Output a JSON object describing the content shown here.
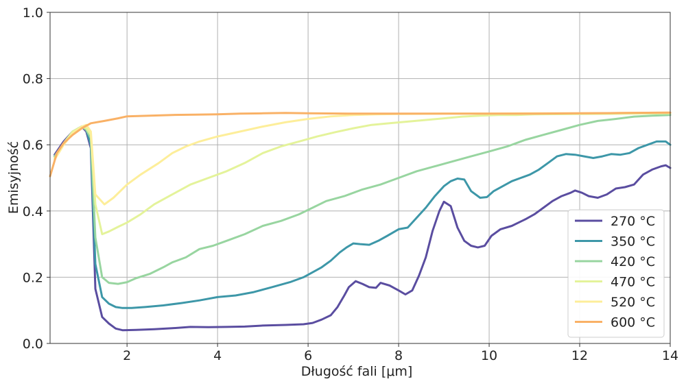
{
  "chart_data": {
    "type": "line",
    "title": "",
    "xlabel": "Długość fali [μm]",
    "ylabel": "Emisyjność",
    "xlim": [
      0.3,
      14
    ],
    "ylim": [
      0,
      1.0
    ],
    "grid": true,
    "legend_position": "lower-right",
    "x_ticks": [
      2,
      4,
      6,
      8,
      10,
      12,
      14
    ],
    "x_tick_labels": [
      "2",
      "4",
      "6",
      "8",
      "10",
      "12",
      "14"
    ],
    "y_ticks": [
      0.0,
      0.2,
      0.4,
      0.6,
      0.8,
      1.0
    ],
    "y_tick_labels": [
      "0.0",
      "0.2",
      "0.4",
      "0.6",
      "0.8",
      "1.0"
    ],
    "series": [
      {
        "name": "270 °C",
        "color": "#5a4da0",
        "points": [
          [
            0.4,
            0.57
          ],
          [
            0.6,
            0.61
          ],
          [
            0.8,
            0.64
          ],
          [
            1.0,
            0.655
          ],
          [
            1.1,
            0.64
          ],
          [
            1.2,
            0.59
          ],
          [
            1.3,
            0.165
          ],
          [
            1.45,
            0.08
          ],
          [
            1.6,
            0.06
          ],
          [
            1.75,
            0.045
          ],
          [
            1.9,
            0.04
          ],
          [
            2.2,
            0.041
          ],
          [
            2.6,
            0.043
          ],
          [
            3.0,
            0.046
          ],
          [
            3.4,
            0.05
          ],
          [
            3.8,
            0.049
          ],
          [
            4.2,
            0.05
          ],
          [
            4.6,
            0.051
          ],
          [
            5.0,
            0.054
          ],
          [
            5.5,
            0.056
          ],
          [
            5.9,
            0.058
          ],
          [
            6.1,
            0.062
          ],
          [
            6.3,
            0.072
          ],
          [
            6.5,
            0.085
          ],
          [
            6.65,
            0.11
          ],
          [
            6.8,
            0.145
          ],
          [
            6.9,
            0.17
          ],
          [
            7.05,
            0.188
          ],
          [
            7.2,
            0.18
          ],
          [
            7.35,
            0.17
          ],
          [
            7.5,
            0.168
          ],
          [
            7.6,
            0.183
          ],
          [
            7.8,
            0.175
          ],
          [
            8.0,
            0.16
          ],
          [
            8.15,
            0.148
          ],
          [
            8.3,
            0.16
          ],
          [
            8.45,
            0.205
          ],
          [
            8.6,
            0.26
          ],
          [
            8.75,
            0.34
          ],
          [
            8.9,
            0.4
          ],
          [
            9.0,
            0.428
          ],
          [
            9.15,
            0.415
          ],
          [
            9.3,
            0.35
          ],
          [
            9.45,
            0.31
          ],
          [
            9.6,
            0.295
          ],
          [
            9.75,
            0.29
          ],
          [
            9.9,
            0.295
          ],
          [
            10.05,
            0.325
          ],
          [
            10.25,
            0.345
          ],
          [
            10.5,
            0.355
          ],
          [
            10.8,
            0.375
          ],
          [
            11.0,
            0.39
          ],
          [
            11.2,
            0.41
          ],
          [
            11.4,
            0.43
          ],
          [
            11.6,
            0.445
          ],
          [
            11.8,
            0.455
          ],
          [
            11.9,
            0.462
          ],
          [
            12.05,
            0.455
          ],
          [
            12.2,
            0.445
          ],
          [
            12.4,
            0.44
          ],
          [
            12.6,
            0.45
          ],
          [
            12.8,
            0.468
          ],
          [
            13.0,
            0.472
          ],
          [
            13.2,
            0.48
          ],
          [
            13.4,
            0.51
          ],
          [
            13.6,
            0.525
          ],
          [
            13.8,
            0.535
          ],
          [
            13.9,
            0.538
          ],
          [
            14.0,
            0.53
          ]
        ]
      },
      {
        "name": "350 °C",
        "color": "#3d97a8",
        "points": [
          [
            0.4,
            0.565
          ],
          [
            0.6,
            0.605
          ],
          [
            0.8,
            0.64
          ],
          [
            1.0,
            0.655
          ],
          [
            1.1,
            0.645
          ],
          [
            1.2,
            0.6
          ],
          [
            1.3,
            0.24
          ],
          [
            1.45,
            0.14
          ],
          [
            1.6,
            0.12
          ],
          [
            1.75,
            0.11
          ],
          [
            1.9,
            0.107
          ],
          [
            2.1,
            0.107
          ],
          [
            2.4,
            0.11
          ],
          [
            2.8,
            0.115
          ],
          [
            3.2,
            0.122
          ],
          [
            3.6,
            0.13
          ],
          [
            4.0,
            0.14
          ],
          [
            4.4,
            0.145
          ],
          [
            4.8,
            0.155
          ],
          [
            5.2,
            0.17
          ],
          [
            5.6,
            0.185
          ],
          [
            5.9,
            0.2
          ],
          [
            6.1,
            0.215
          ],
          [
            6.3,
            0.23
          ],
          [
            6.5,
            0.25
          ],
          [
            6.7,
            0.275
          ],
          [
            6.85,
            0.29
          ],
          [
            7.0,
            0.302
          ],
          [
            7.15,
            0.3
          ],
          [
            7.35,
            0.298
          ],
          [
            7.55,
            0.31
          ],
          [
            7.75,
            0.325
          ],
          [
            8.0,
            0.345
          ],
          [
            8.2,
            0.35
          ],
          [
            8.4,
            0.38
          ],
          [
            8.6,
            0.41
          ],
          [
            8.8,
            0.445
          ],
          [
            9.0,
            0.475
          ],
          [
            9.15,
            0.49
          ],
          [
            9.3,
            0.498
          ],
          [
            9.45,
            0.495
          ],
          [
            9.6,
            0.46
          ],
          [
            9.8,
            0.44
          ],
          [
            9.95,
            0.442
          ],
          [
            10.1,
            0.46
          ],
          [
            10.3,
            0.475
          ],
          [
            10.5,
            0.49
          ],
          [
            10.7,
            0.5
          ],
          [
            10.9,
            0.51
          ],
          [
            11.1,
            0.525
          ],
          [
            11.3,
            0.545
          ],
          [
            11.5,
            0.565
          ],
          [
            11.7,
            0.572
          ],
          [
            11.9,
            0.57
          ],
          [
            12.1,
            0.565
          ],
          [
            12.3,
            0.56
          ],
          [
            12.5,
            0.565
          ],
          [
            12.7,
            0.572
          ],
          [
            12.9,
            0.57
          ],
          [
            13.1,
            0.575
          ],
          [
            13.3,
            0.59
          ],
          [
            13.5,
            0.6
          ],
          [
            13.7,
            0.61
          ],
          [
            13.9,
            0.61
          ],
          [
            14.0,
            0.6
          ]
        ]
      },
      {
        "name": "420 °C",
        "color": "#98d5a0",
        "points": [
          [
            0.4,
            0.565
          ],
          [
            0.6,
            0.605
          ],
          [
            0.8,
            0.64
          ],
          [
            1.0,
            0.655
          ],
          [
            1.1,
            0.645
          ],
          [
            1.2,
            0.62
          ],
          [
            1.3,
            0.32
          ],
          [
            1.45,
            0.2
          ],
          [
            1.6,
            0.183
          ],
          [
            1.8,
            0.18
          ],
          [
            2.0,
            0.185
          ],
          [
            2.2,
            0.197
          ],
          [
            2.5,
            0.21
          ],
          [
            2.8,
            0.23
          ],
          [
            3.0,
            0.245
          ],
          [
            3.3,
            0.26
          ],
          [
            3.6,
            0.285
          ],
          [
            3.9,
            0.295
          ],
          [
            4.2,
            0.31
          ],
          [
            4.6,
            0.33
          ],
          [
            5.0,
            0.355
          ],
          [
            5.4,
            0.37
          ],
          [
            5.8,
            0.39
          ],
          [
            6.1,
            0.41
          ],
          [
            6.4,
            0.43
          ],
          [
            6.8,
            0.445
          ],
          [
            7.2,
            0.465
          ],
          [
            7.6,
            0.48
          ],
          [
            8.0,
            0.5
          ],
          [
            8.4,
            0.52
          ],
          [
            8.8,
            0.535
          ],
          [
            9.2,
            0.55
          ],
          [
            9.6,
            0.565
          ],
          [
            10.0,
            0.58
          ],
          [
            10.4,
            0.595
          ],
          [
            10.8,
            0.615
          ],
          [
            11.2,
            0.63
          ],
          [
            11.6,
            0.645
          ],
          [
            12.0,
            0.66
          ],
          [
            12.4,
            0.672
          ],
          [
            12.8,
            0.678
          ],
          [
            13.2,
            0.685
          ],
          [
            13.6,
            0.688
          ],
          [
            14.0,
            0.69
          ]
        ]
      },
      {
        "name": "470 °C",
        "color": "#e4f39a",
        "points": [
          [
            0.4,
            0.56
          ],
          [
            0.6,
            0.605
          ],
          [
            0.8,
            0.64
          ],
          [
            1.0,
            0.655
          ],
          [
            1.1,
            0.65
          ],
          [
            1.2,
            0.63
          ],
          [
            1.3,
            0.42
          ],
          [
            1.45,
            0.33
          ],
          [
            1.6,
            0.338
          ],
          [
            1.8,
            0.352
          ],
          [
            2.0,
            0.365
          ],
          [
            2.3,
            0.39
          ],
          [
            2.6,
            0.42
          ],
          [
            3.0,
            0.45
          ],
          [
            3.4,
            0.48
          ],
          [
            3.8,
            0.5
          ],
          [
            4.2,
            0.52
          ],
          [
            4.6,
            0.545
          ],
          [
            5.0,
            0.575
          ],
          [
            5.4,
            0.595
          ],
          [
            5.8,
            0.61
          ],
          [
            6.2,
            0.625
          ],
          [
            6.6,
            0.638
          ],
          [
            7.0,
            0.65
          ],
          [
            7.4,
            0.66
          ],
          [
            7.8,
            0.665
          ],
          [
            8.2,
            0.67
          ],
          [
            8.6,
            0.675
          ],
          [
            9.0,
            0.68
          ],
          [
            9.4,
            0.685
          ],
          [
            9.8,
            0.688
          ],
          [
            10.2,
            0.69
          ],
          [
            10.6,
            0.69
          ],
          [
            11.0,
            0.692
          ],
          [
            12.0,
            0.693
          ],
          [
            13.0,
            0.694
          ],
          [
            14.0,
            0.695
          ]
        ]
      },
      {
        "name": "520 °C",
        "color": "#fdee9a",
        "points": [
          [
            0.4,
            0.555
          ],
          [
            0.6,
            0.6
          ],
          [
            0.8,
            0.635
          ],
          [
            1.0,
            0.655
          ],
          [
            1.1,
            0.66
          ],
          [
            1.2,
            0.64
          ],
          [
            1.3,
            0.45
          ],
          [
            1.5,
            0.42
          ],
          [
            1.7,
            0.44
          ],
          [
            2.0,
            0.48
          ],
          [
            2.3,
            0.51
          ],
          [
            2.7,
            0.545
          ],
          [
            3.0,
            0.575
          ],
          [
            3.3,
            0.595
          ],
          [
            3.6,
            0.61
          ],
          [
            4.0,
            0.625
          ],
          [
            4.5,
            0.64
          ],
          [
            5.0,
            0.655
          ],
          [
            5.5,
            0.668
          ],
          [
            6.0,
            0.678
          ],
          [
            6.5,
            0.686
          ],
          [
            7.0,
            0.69
          ],
          [
            7.5,
            0.692
          ],
          [
            8.0,
            0.693
          ],
          [
            9.0,
            0.694
          ],
          [
            10.0,
            0.694
          ],
          [
            11.0,
            0.695
          ],
          [
            12.0,
            0.695
          ],
          [
            13.0,
            0.696
          ],
          [
            14.0,
            0.697
          ]
        ]
      },
      {
        "name": "600 °C",
        "color": "#f9b166",
        "points": [
          [
            0.3,
            0.505
          ],
          [
            0.45,
            0.575
          ],
          [
            0.6,
            0.605
          ],
          [
            0.8,
            0.63
          ],
          [
            1.0,
            0.65
          ],
          [
            1.2,
            0.665
          ],
          [
            1.5,
            0.672
          ],
          [
            1.8,
            0.68
          ],
          [
            2.0,
            0.686
          ],
          [
            2.5,
            0.688
          ],
          [
            3.0,
            0.69
          ],
          [
            3.5,
            0.691
          ],
          [
            4.0,
            0.692
          ],
          [
            4.5,
            0.694
          ],
          [
            5.0,
            0.695
          ],
          [
            5.5,
            0.696
          ],
          [
            6.0,
            0.695
          ],
          [
            7.0,
            0.694
          ],
          [
            8.0,
            0.694
          ],
          [
            9.0,
            0.694
          ],
          [
            10.0,
            0.694
          ],
          [
            11.0,
            0.694
          ],
          [
            12.0,
            0.695
          ],
          [
            13.0,
            0.696
          ],
          [
            14.0,
            0.697
          ]
        ]
      }
    ]
  }
}
